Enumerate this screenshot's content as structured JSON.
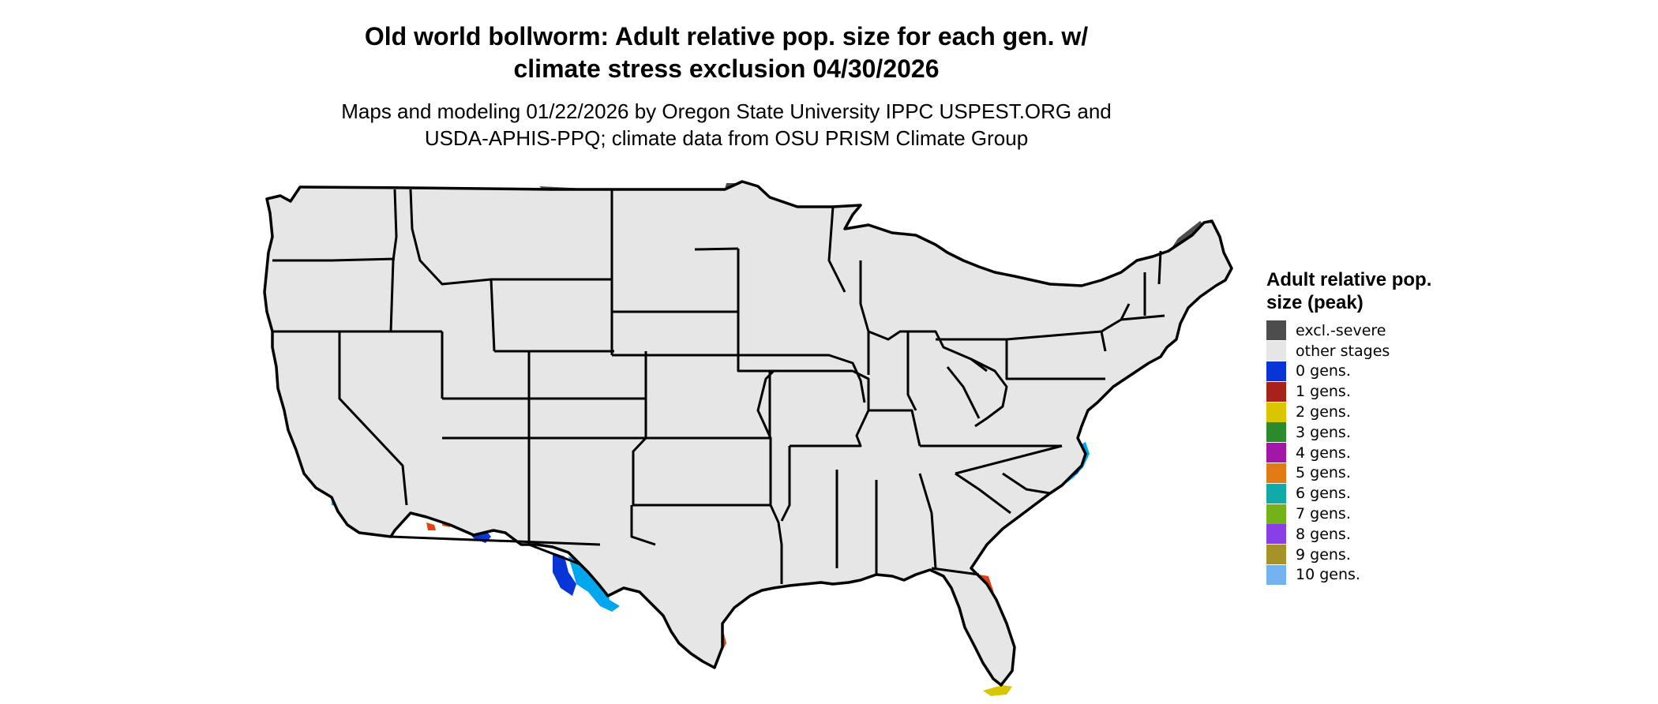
{
  "title_line1": "Old world bollworm: Adult relative pop. size for each gen. w/",
  "title_line2": "climate stress exclusion 04/30/2026",
  "subtitle_line1": "Maps and modeling 01/22/2026 by Oregon State University IPPC USPEST.ORG and",
  "subtitle_line2": "USDA-APHIS-PPQ; climate data from OSU PRISM Climate Group",
  "legend": {
    "title": "Adult relative pop. size (peak)",
    "items": [
      {
        "label": "excl.-severe",
        "color": "#4d4d4d"
      },
      {
        "label": "other stages",
        "color": "#e6e6e6"
      },
      {
        "label": "0 gens.",
        "color": "#0a35d6"
      },
      {
        "label": "1 gens.",
        "color": "#a8221c"
      },
      {
        "label": "2 gens.",
        "color": "#d9c500"
      },
      {
        "label": "3 gens.",
        "color": "#2b8a2b"
      },
      {
        "label": "4 gens.",
        "color": "#a317a8"
      },
      {
        "label": "5 gens.",
        "color": "#e07a12"
      },
      {
        "label": "6 gens.",
        "color": "#12aaa8"
      },
      {
        "label": "7 gens.",
        "color": "#74b21a"
      },
      {
        "label": "8 gens.",
        "color": "#8a3ee6"
      },
      {
        "label": "9 gens.",
        "color": "#a6922a"
      },
      {
        "label": "10 gens.",
        "color": "#74b3f0"
      }
    ]
  },
  "map": {
    "region": "Contiguous United States",
    "colors": {
      "land": "#e6e6e6",
      "excluded": "#4d4d4d",
      "zero_gens_dark": "#0a35d6",
      "zero_gens_light": "#00a6ee",
      "one_gen": "#e8410d",
      "two_gens": "#d9c500",
      "border": "#000000"
    }
  }
}
